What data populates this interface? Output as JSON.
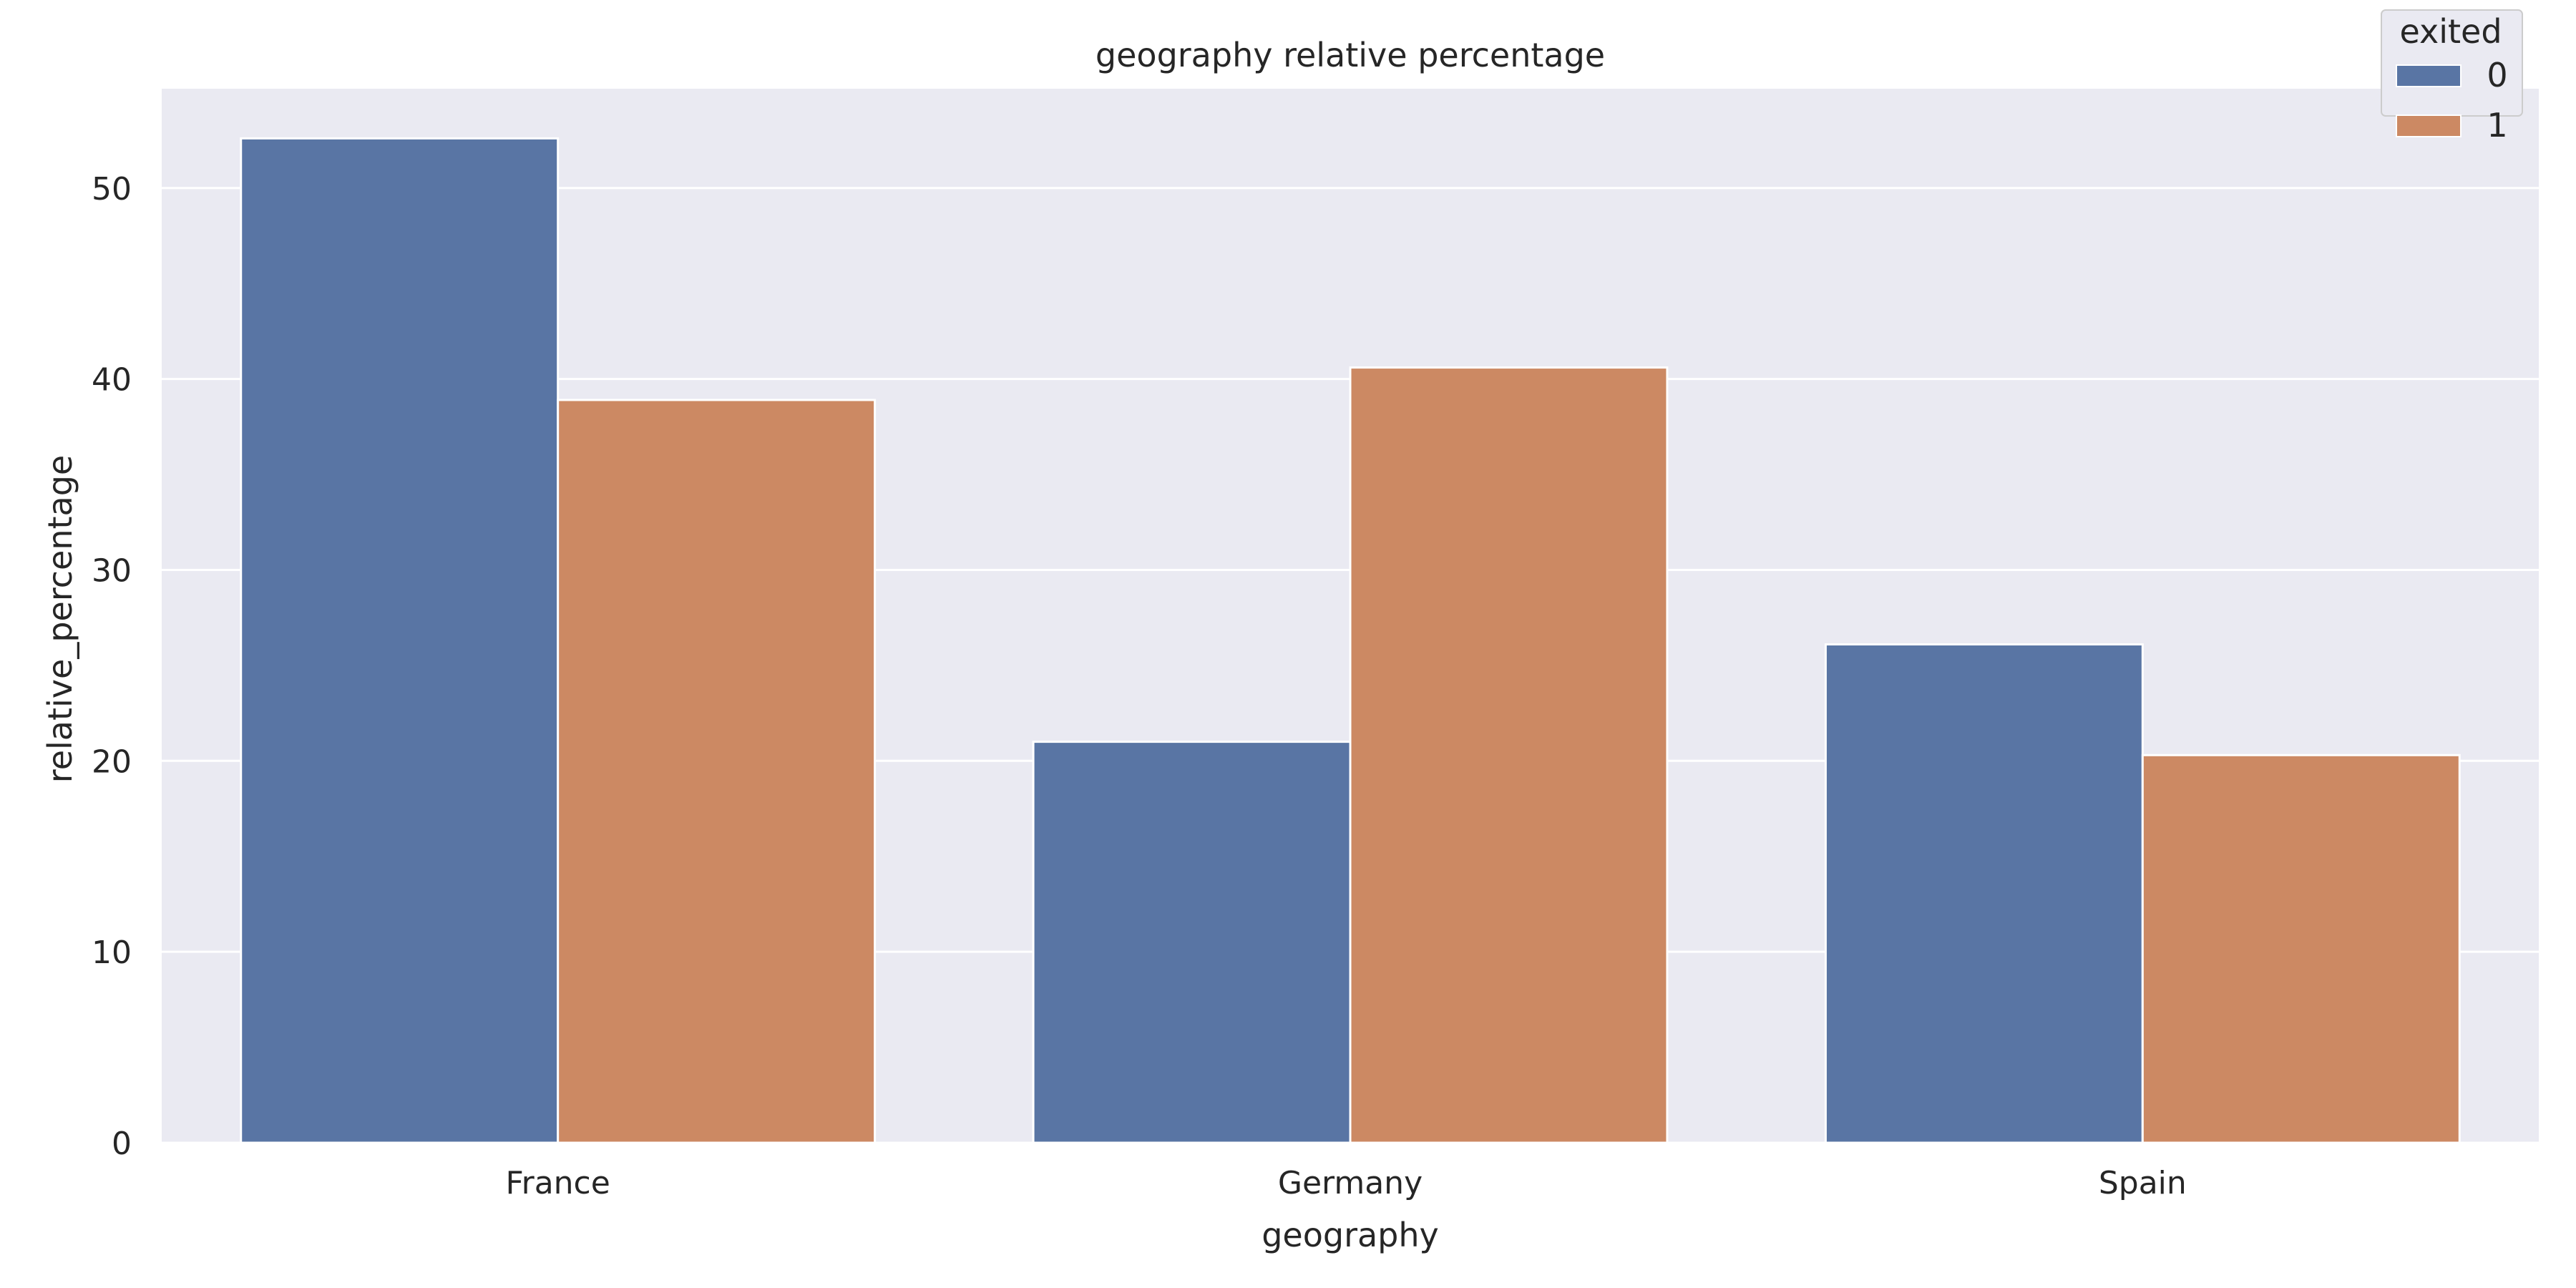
{
  "chart_data": {
    "type": "bar",
    "title": "geography relative percentage",
    "xlabel": "geography",
    "ylabel": "relative_percentage",
    "categories": [
      "France",
      "Germany",
      "Spain"
    ],
    "series": [
      {
        "name": "0",
        "values": [
          52.6,
          21.0,
          26.1
        ],
        "color": "#5975a4"
      },
      {
        "name": "1",
        "values": [
          38.9,
          40.6,
          20.3
        ],
        "color": "#cc8963"
      }
    ],
    "ylim": [
      0,
      55.2
    ],
    "yticks": [
      0,
      10,
      20,
      30,
      40,
      50
    ],
    "grid": true,
    "legend": {
      "title": "exited",
      "placement": "top-right"
    },
    "colors": {
      "background": "#eaeaf2",
      "grid": "#ffffff"
    }
  }
}
